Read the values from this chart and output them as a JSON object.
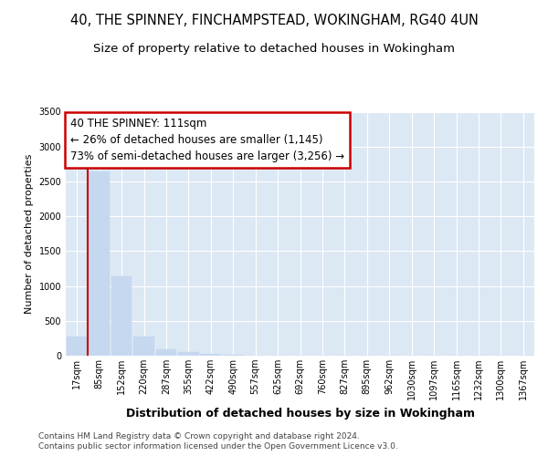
{
  "title": "40, THE SPINNEY, FINCHAMPSTEAD, WOKINGHAM, RG40 4UN",
  "subtitle": "Size of property relative to detached houses in Wokingham",
  "xlabel": "Distribution of detached houses by size in Wokingham",
  "ylabel": "Number of detached properties",
  "categories": [
    "17sqm",
    "85sqm",
    "152sqm",
    "220sqm",
    "287sqm",
    "355sqm",
    "422sqm",
    "490sqm",
    "557sqm",
    "625sqm",
    "692sqm",
    "760sqm",
    "827sqm",
    "895sqm",
    "962sqm",
    "1030sqm",
    "1097sqm",
    "1165sqm",
    "1232sqm",
    "1300sqm",
    "1367sqm"
  ],
  "values": [
    275,
    2640,
    1140,
    275,
    90,
    50,
    28,
    10,
    0,
    0,
    0,
    0,
    0,
    0,
    0,
    0,
    0,
    0,
    0,
    0,
    0
  ],
  "bar_color": "#c5d8ef",
  "bar_edge_color": "#c5d8ef",
  "grid_color": "#ffffff",
  "bg_color": "#dde8f5",
  "red_line_x": 0.5,
  "annotation_text": "40 THE SPINNEY: 111sqm\n← 26% of detached houses are smaller (1,145)\n73% of semi-detached houses are larger (3,256) →",
  "annotation_box_color": "#ffffff",
  "annotation_border_color": "#cc0000",
  "ylim": [
    0,
    3500
  ],
  "yticks": [
    0,
    500,
    1000,
    1500,
    2000,
    2500,
    3000,
    3500
  ],
  "footer1": "Contains HM Land Registry data © Crown copyright and database right 2024.",
  "footer2": "Contains public sector information licensed under the Open Government Licence v3.0.",
  "title_fontsize": 10.5,
  "subtitle_fontsize": 9.5,
  "xlabel_fontsize": 9,
  "ylabel_fontsize": 8,
  "tick_fontsize": 7,
  "annotation_fontsize": 8.5
}
